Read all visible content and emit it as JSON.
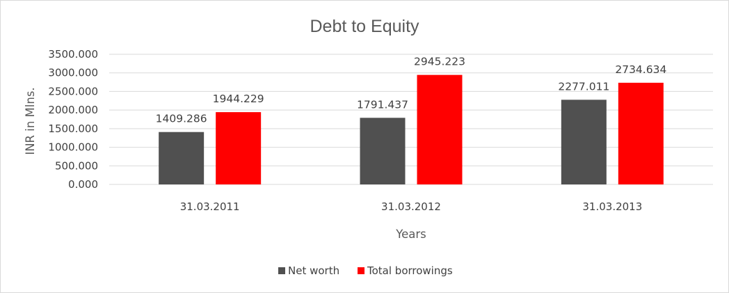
{
  "chart_data": {
    "type": "bar",
    "title": "Debt to Equity",
    "xlabel": "Years",
    "ylabel": "INR in Mlns.",
    "categories": [
      "31.03.2011",
      "31.03.2012",
      "31.03.2013"
    ],
    "series": [
      {
        "name": "Net worth",
        "color": "#505050",
        "values": [
          1409.286,
          1791.437,
          2277.011
        ],
        "labels": [
          "1409.286",
          "1791.437",
          "2277.011"
        ]
      },
      {
        "name": "Total borrowings",
        "color": "#ff0000",
        "values": [
          1944.229,
          2945.223,
          2734.634
        ],
        "labels": [
          "1944.229",
          "2945.223",
          "2734.634"
        ]
      }
    ],
    "ylim": [
      0,
      3500
    ],
    "yticks": [
      "0.000",
      "500.000",
      "1000.000",
      "1500.000",
      "2000.000",
      "2500.000",
      "3000.000",
      "3500.000"
    ],
    "ytick_values": [
      0,
      500,
      1000,
      1500,
      2000,
      2500,
      3000,
      3500
    ],
    "gridlines": true,
    "gridline_color": "#d9d9d9",
    "legend_position": "bottom"
  }
}
